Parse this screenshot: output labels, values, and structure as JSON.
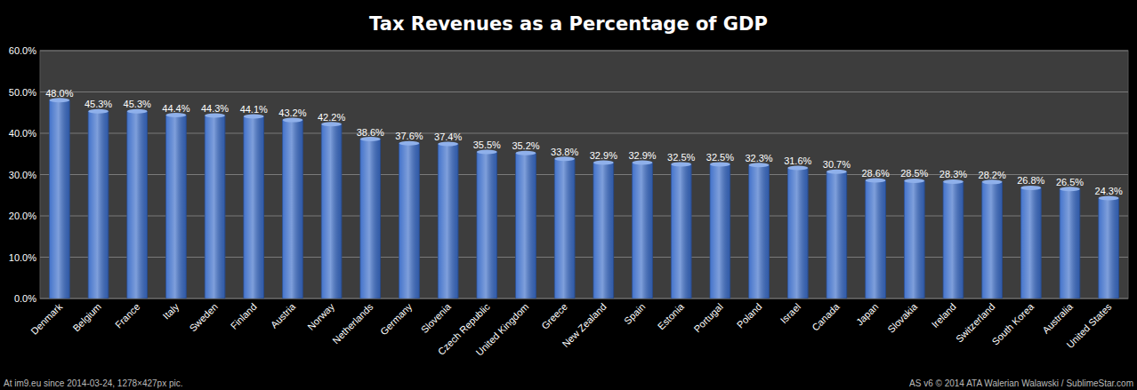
{
  "chart_data": {
    "type": "bar",
    "title": "Tax Revenues as a Percentage of GDP",
    "categories": [
      "Denmark",
      "Belgium",
      "France",
      "Italy",
      "Sweden",
      "Finland",
      "Austria",
      "Norway",
      "Netherlands",
      "Germany",
      "Slovenia",
      "Czech Republic",
      "United Kingdom",
      "Greece",
      "New Zealand",
      "Spain",
      "Estonia",
      "Portugal",
      "Poland",
      "Israel",
      "Canada",
      "Japan",
      "Slovakia",
      "Ireland",
      "Switzerland",
      "South Korea",
      "Australia",
      "United States"
    ],
    "values": [
      48.0,
      45.3,
      45.3,
      44.4,
      44.3,
      44.1,
      43.2,
      42.2,
      38.6,
      37.6,
      37.4,
      35.5,
      35.2,
      33.8,
      32.9,
      32.9,
      32.5,
      32.5,
      32.3,
      31.6,
      30.7,
      28.6,
      28.5,
      28.3,
      28.2,
      26.8,
      26.5,
      24.3
    ],
    "value_labels": [
      "48.0%",
      "45.3%",
      "45.3%",
      "44.4%",
      "44.3%",
      "44.1%",
      "43.2%",
      "42.2%",
      "38.6%",
      "37.6%",
      "37.4%",
      "35.5%",
      "35.2%",
      "33.8%",
      "32.9%",
      "32.9%",
      "32.5%",
      "32.5%",
      "32.3%",
      "31.6%",
      "30.7%",
      "28.6%",
      "28.5%",
      "28.3%",
      "28.2%",
      "26.8%",
      "26.5%",
      "24.3%"
    ],
    "color": "#3a6cc8",
    "ylim": [
      0,
      60
    ],
    "yticks": [
      {
        "value": 0,
        "label": "0.0%"
      },
      {
        "value": 10,
        "label": "10.0%"
      },
      {
        "value": 20,
        "label": "20.0%"
      },
      {
        "value": 30,
        "label": "30.0%"
      },
      {
        "value": 40,
        "label": "40.0%"
      },
      {
        "value": 50,
        "label": "50.0%"
      },
      {
        "value": 60,
        "label": "60.0%"
      }
    ],
    "grid": true,
    "data_labels": true,
    "annotations": [
      "At im9.eu  since 2014-03-24, 1278×427px pic.",
      "AS v6 © 2014 ATA Walerian Walawski / SublimeStar.com"
    ]
  }
}
